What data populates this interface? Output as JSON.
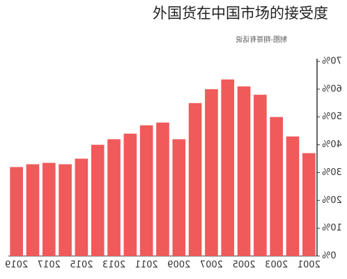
{
  "chart_data": {
    "type": "bar",
    "title": "外国货在中国市场的接受度",
    "note": "制图-翔哥有话说",
    "categories": [
      "2001",
      null,
      "2003",
      null,
      "2005",
      null,
      "2007",
      null,
      "2009",
      null,
      "2011",
      null,
      "2013",
      null,
      "2015",
      null,
      "2017",
      null,
      "2019"
    ],
    "values": [
      37,
      43,
      50,
      58,
      61,
      63.5,
      60,
      55,
      42,
      48,
      47,
      44,
      42,
      40,
      35,
      33,
      33.5,
      33,
      32
    ],
    "color": "#f05a5a",
    "ylim": [
      0,
      70
    ],
    "yticks": [
      {
        "value": 0,
        "label": "0%"
      },
      {
        "value": 10,
        "label": "10%"
      },
      {
        "value": 20,
        "label": "20%"
      },
      {
        "value": 30,
        "label": "30%"
      },
      {
        "value": 40,
        "label": "40%"
      },
      {
        "value": 50,
        "label": "50%"
      },
      {
        "value": 60,
        "label": "60%"
      },
      {
        "value": 70,
        "label": "70%"
      }
    ],
    "mirrored": true
  }
}
